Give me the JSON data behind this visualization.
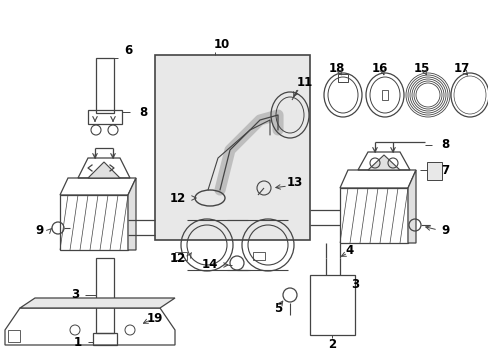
{
  "bg_color": "#ffffff",
  "line_color": "#444444",
  "label_fontsize": 8.5,
  "fig_width": 4.89,
  "fig_height": 3.6,
  "dpi": 100
}
